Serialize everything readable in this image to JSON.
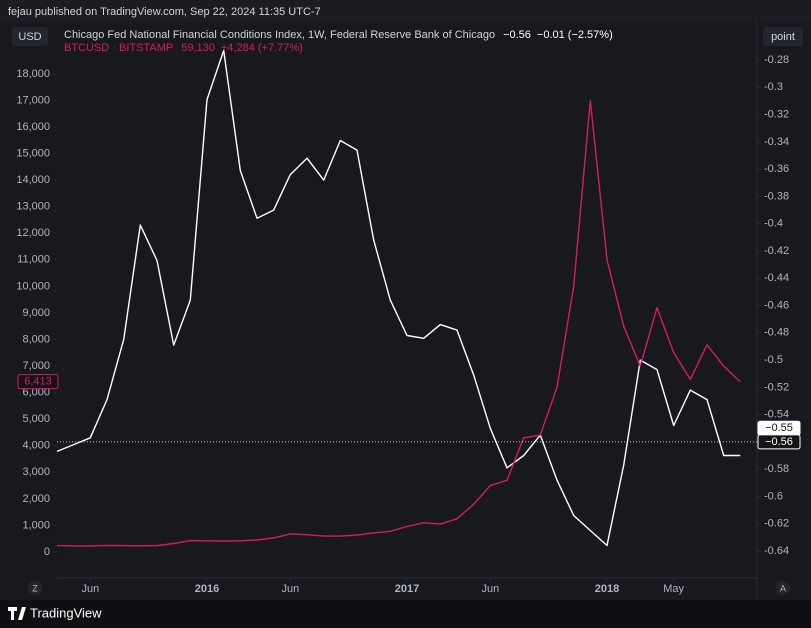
{
  "header": "fejau published on TradingView.com, Sep 22, 2024 11:35 UTC-7",
  "footer": "TradingView",
  "buttons": {
    "currency": "USD",
    "scale": "point",
    "left_corner": "Z",
    "right_corner": "A"
  },
  "chart_data": {
    "type": "line",
    "x": [
      "2015-04",
      "2015-05",
      "2015-06",
      "2015-07",
      "2015-08",
      "2015-09",
      "2015-10",
      "2015-11",
      "2015-12",
      "2016-01",
      "2016-02",
      "2016-03",
      "2016-04",
      "2016-05",
      "2016-06",
      "2016-07",
      "2016-08",
      "2016-09",
      "2016-10",
      "2016-11",
      "2016-12",
      "2017-01",
      "2017-02",
      "2017-03",
      "2017-04",
      "2017-05",
      "2017-06",
      "2017-07",
      "2017-08",
      "2017-09",
      "2017-10",
      "2017-11",
      "2017-12",
      "2018-01",
      "2018-02",
      "2018-03",
      "2018-04",
      "2018-05",
      "2018-06",
      "2018-07",
      "2018-08",
      "2018-09"
    ],
    "xlim": [
      "2015-04",
      "2018-10"
    ],
    "xticks": [
      {
        "value": "2015-06",
        "label": "Jun"
      },
      {
        "value": "2016-01",
        "label": "2016"
      },
      {
        "value": "2016-06",
        "label": "Jun"
      },
      {
        "value": "2017-01",
        "label": "2017"
      },
      {
        "value": "2017-06",
        "label": "Jun"
      },
      {
        "value": "2018-01",
        "label": "2018"
      },
      {
        "value": "2018-05",
        "label": "May"
      }
    ],
    "ylim": [
      -866,
      19842
    ],
    "yticks": [
      0,
      {
        "value": 1000,
        "label": "1,000"
      },
      {
        "value": 2000,
        "label": "2,000"
      },
      {
        "value": 3000,
        "label": "3,000"
      },
      {
        "value": 4000,
        "label": "4,000"
      },
      {
        "value": 5000,
        "label": "5,000"
      },
      {
        "value": 6000,
        "label": "6,000"
      },
      {
        "value": 7000,
        "label": "7,000"
      },
      {
        "value": 8000,
        "label": "8,000"
      },
      {
        "value": 9000,
        "label": "9,000"
      },
      {
        "value": 10000,
        "label": "10,000"
      },
      {
        "value": 11000,
        "label": "11,000"
      },
      {
        "value": 12000,
        "label": "12,000"
      },
      {
        "value": 13000,
        "label": "13,000"
      },
      {
        "value": 14000,
        "label": "14,000"
      },
      {
        "value": 15000,
        "label": "15,000"
      },
      {
        "value": 16000,
        "label": "16,000"
      },
      {
        "value": 17000,
        "label": "17,000"
      },
      {
        "value": 18000,
        "label": "18,000"
      }
    ],
    "y2lim": [
      -0.6576,
      -0.2543
    ],
    "y2ticks": [
      -0.28,
      -0.3,
      -0.32,
      -0.34,
      -0.36,
      -0.38,
      -0.4,
      -0.42,
      -0.44,
      -0.46,
      -0.48,
      -0.5,
      -0.52,
      -0.54,
      -0.56,
      -0.58,
      -0.6,
      -0.62,
      -0.64
    ],
    "grid": false,
    "series": [
      {
        "name": "Chicago Fed National Financial Conditions Index, 1W, Federal Reserve Bank of Chicago",
        "color": "#ffffff",
        "axis": "y2",
        "last_label": "−0.56",
        "change_label": "−0.01 (−2.57%)",
        "values": [
          -0.567,
          -0.562,
          -0.557,
          -0.529,
          -0.485,
          -0.401,
          -0.427,
          -0.489,
          -0.456,
          -0.309,
          -0.273,
          -0.361,
          -0.396,
          -0.39,
          -0.364,
          -0.352,
          -0.368,
          -0.339,
          -0.346,
          -0.412,
          -0.456,
          -0.482,
          -0.484,
          -0.474,
          -0.478,
          -0.511,
          -0.55,
          -0.579,
          -0.57,
          -0.555,
          -0.588,
          -0.614,
          -0.625,
          -0.636,
          -0.577,
          -0.5,
          -0.507,
          -0.548,
          -0.522,
          -0.529,
          -0.57,
          -0.57
        ]
      },
      {
        "name": "BTCUSD · BITSTAMP",
        "color": "#d81b60",
        "axis": "y",
        "last_label": "59,130",
        "change_label": "+4,284 (+7.77%)",
        "values": [
          240,
          230,
          230,
          250,
          240,
          235,
          240,
          320,
          430,
          420,
          410,
          420,
          450,
          530,
          680,
          650,
          600,
          600,
          640,
          720,
          780,
          960,
          1100,
          1050,
          1250,
          1800,
          2500,
          2700,
          4300,
          4400,
          6200,
          10000,
          17000,
          11000,
          8500,
          7000,
          9200,
          7500,
          6500,
          7800,
          7000,
          6413
        ]
      }
    ],
    "price_labels": [
      {
        "value": 6413,
        "label": "6,413",
        "axis": "y",
        "color": "#d81b60"
      },
      {
        "value": -0.55,
        "label": "−0.55",
        "axis": "y2",
        "color": "#ffffff"
      },
      {
        "value": -0.56,
        "label": "−0.56",
        "axis": "y2",
        "color": "#ffffff",
        "line": true
      }
    ]
  }
}
